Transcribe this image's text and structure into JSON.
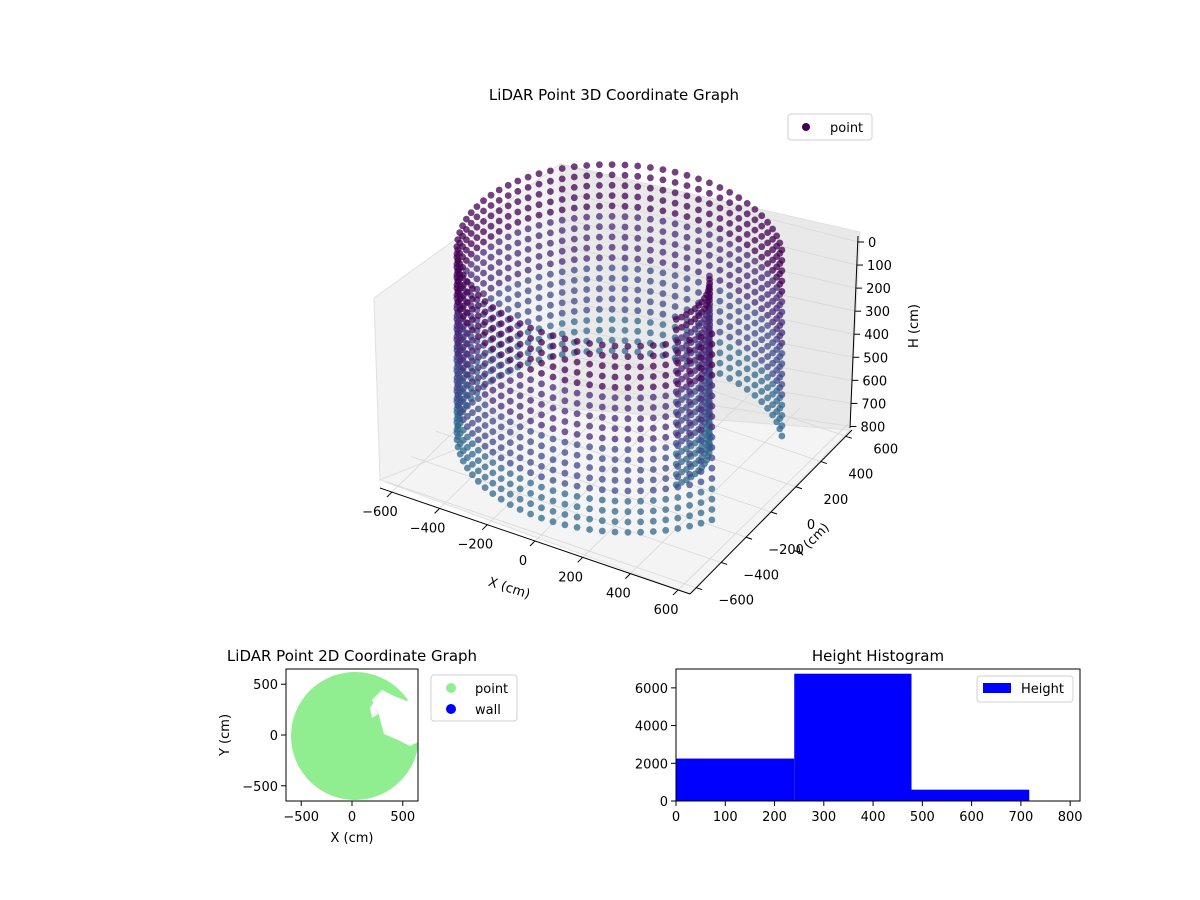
{
  "chart_data": [
    {
      "type": "scatter",
      "projection": "3d",
      "title": "LiDAR Point 3D Coordinate Graph",
      "xlabel": "X (cm)",
      "ylabel": "Y (cm)",
      "zlabel": "H (cm)",
      "xlim": [
        -650,
        650
      ],
      "ylim": [
        -650,
        650
      ],
      "zlim": [
        0,
        850
      ],
      "z_axis_inverted": true,
      "xticks": [
        -600,
        -400,
        -200,
        0,
        200,
        400,
        600
      ],
      "yticks": [
        -600,
        -400,
        -200,
        0,
        200,
        400,
        600
      ],
      "zticks": [
        0,
        100,
        200,
        300,
        400,
        500,
        600,
        700,
        800
      ],
      "legend": {
        "position": "top-right",
        "entries": [
          {
            "label": "point",
            "color": "#440154"
          }
        ]
      },
      "colormap": "viridis",
      "series": [
        {
          "name": "point",
          "shape": "cylindrical wall with interior cutout",
          "wall_radius": 600,
          "opening_angle_deg": [
            -25,
            35
          ],
          "height_range": [
            0,
            720
          ],
          "point_colors": [
            "#440154",
            "#482878",
            "#3e4a89",
            "#31688e"
          ]
        }
      ],
      "grid": true
    },
    {
      "type": "scatter",
      "title": "LiDAR Point 2D Coordinate Graph",
      "xlabel": "X (cm)",
      "ylabel": "Y (cm)",
      "xlim": [
        -650,
        650
      ],
      "ylim": [
        -650,
        650
      ],
      "xticks": [
        -500,
        0,
        500
      ],
      "yticks": [
        -500,
        0,
        500
      ],
      "legend": {
        "position": "outside-right",
        "entries": [
          {
            "label": "point",
            "color": "#90ee90"
          },
          {
            "label": "wall",
            "color": "#0000ff"
          }
        ]
      },
      "series": [
        {
          "name": "point",
          "color": "#90ee90",
          "shape": "filled disk",
          "radius": 600
        },
        {
          "name": "wall",
          "color": "#0000ff",
          "values": []
        }
      ],
      "grid": false
    },
    {
      "type": "bar",
      "subtype": "histogram",
      "title": "Height Histogram",
      "xlabel": "",
      "ylabel": "",
      "xlim": [
        0,
        820
      ],
      "ylim": [
        0,
        7000
      ],
      "xticks": [
        0,
        100,
        200,
        300,
        400,
        500,
        600,
        700,
        800
      ],
      "yticks": [
        0,
        2000,
        4000,
        6000
      ],
      "bins": [
        {
          "from": 0,
          "to": 240,
          "count": 2250
        },
        {
          "from": 240,
          "to": 478,
          "count": 6750
        },
        {
          "from": 478,
          "to": 717,
          "count": 600
        }
      ],
      "legend": {
        "position": "top-right",
        "entries": [
          {
            "label": "Height",
            "color": "#0000ff"
          }
        ]
      },
      "color": "#0000ff",
      "grid": false
    }
  ]
}
